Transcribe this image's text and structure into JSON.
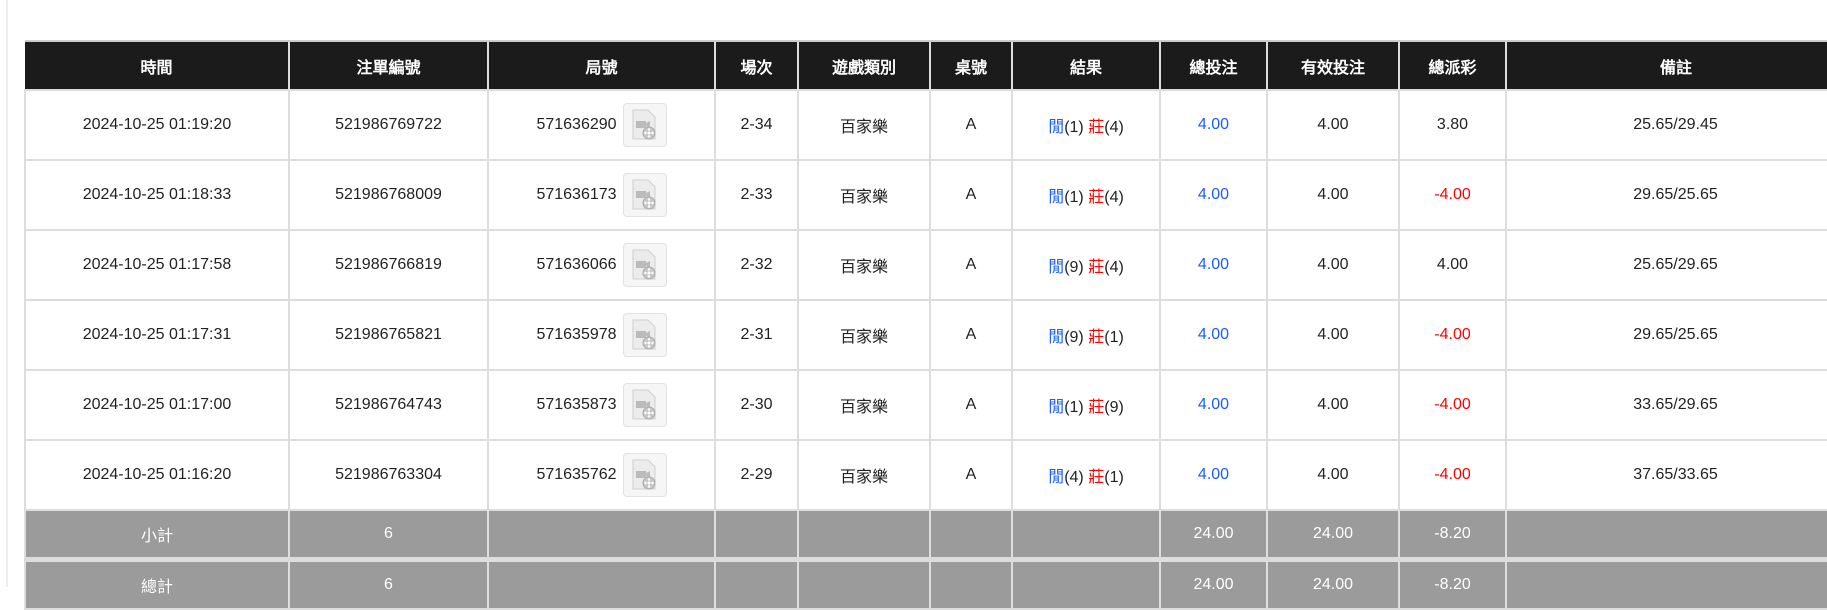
{
  "headers": [
    "時間",
    "注單編號",
    "局號",
    "場次",
    "遊戲類別",
    "桌號",
    "結果",
    "總投注",
    "有效投注",
    "總派彩",
    "備註"
  ],
  "colors": {
    "player": "#1a5cff",
    "banker": "#ff0000",
    "negative": "#ff0000",
    "header_bg": "#1b1b1b",
    "summary_bg": "#9b9b9b"
  },
  "rows": [
    {
      "time": "2024-10-25 01:19:20",
      "bet_id": "521986769722",
      "round": "571636290",
      "shoe": "2-34",
      "game": "百家樂",
      "table": "A",
      "player_label": "閒",
      "player_pts": "(1)",
      "banker_label": "莊",
      "banker_pts": "(4)",
      "total_bet": "4.00",
      "valid_bet": "4.00",
      "payout": "3.80",
      "payout_negative": false,
      "note": "25.65/29.45"
    },
    {
      "time": "2024-10-25 01:18:33",
      "bet_id": "521986768009",
      "round": "571636173",
      "shoe": "2-33",
      "game": "百家樂",
      "table": "A",
      "player_label": "閒",
      "player_pts": "(1)",
      "banker_label": "莊",
      "banker_pts": "(4)",
      "total_bet": "4.00",
      "valid_bet": "4.00",
      "payout": "-4.00",
      "payout_negative": true,
      "note": "29.65/25.65"
    },
    {
      "time": "2024-10-25 01:17:58",
      "bet_id": "521986766819",
      "round": "571636066",
      "shoe": "2-32",
      "game": "百家樂",
      "table": "A",
      "player_label": "閒",
      "player_pts": "(9)",
      "banker_label": "莊",
      "banker_pts": "(4)",
      "total_bet": "4.00",
      "valid_bet": "4.00",
      "payout": "4.00",
      "payout_negative": false,
      "note": "25.65/29.65"
    },
    {
      "time": "2024-10-25 01:17:31",
      "bet_id": "521986765821",
      "round": "571635978",
      "shoe": "2-31",
      "game": "百家樂",
      "table": "A",
      "player_label": "閒",
      "player_pts": "(9)",
      "banker_label": "莊",
      "banker_pts": "(1)",
      "total_bet": "4.00",
      "valid_bet": "4.00",
      "payout": "-4.00",
      "payout_negative": true,
      "note": "29.65/25.65"
    },
    {
      "time": "2024-10-25 01:17:00",
      "bet_id": "521986764743",
      "round": "571635873",
      "shoe": "2-30",
      "game": "百家樂",
      "table": "A",
      "player_label": "閒",
      "player_pts": "(1)",
      "banker_label": "莊",
      "banker_pts": "(9)",
      "total_bet": "4.00",
      "valid_bet": "4.00",
      "payout": "-4.00",
      "payout_negative": true,
      "note": "33.65/29.65"
    },
    {
      "time": "2024-10-25 01:16:20",
      "bet_id": "521986763304",
      "round": "571635762",
      "shoe": "2-29",
      "game": "百家樂",
      "table": "A",
      "player_label": "閒",
      "player_pts": "(4)",
      "banker_label": "莊",
      "banker_pts": "(1)",
      "total_bet": "4.00",
      "valid_bet": "4.00",
      "payout": "-4.00",
      "payout_negative": true,
      "note": "37.65/33.65"
    }
  ],
  "video_icon": "video-replay-icon",
  "subtotal": {
    "label": "小計",
    "count": "6",
    "total_bet": "24.00",
    "valid_bet": "24.00",
    "payout": "-8.20"
  },
  "total": {
    "label": "總計",
    "count": "6",
    "total_bet": "24.00",
    "valid_bet": "24.00",
    "payout": "-8.20"
  }
}
